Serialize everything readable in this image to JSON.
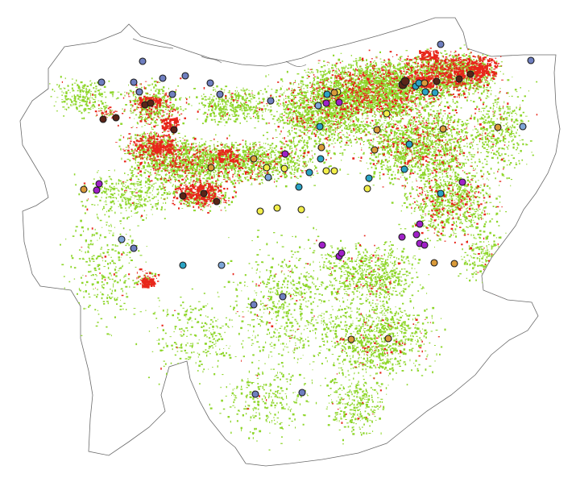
{
  "map": {
    "colors": {
      "background": "#ffffff",
      "boundary_stroke": "#6a6a6a",
      "boundary_fill": "#ffffff",
      "vegetation": "#8ed62a",
      "built_up": "#e8261b",
      "marker_stroke": "#1a1a1a"
    },
    "marker_classes": [
      {
        "id": "slate-blue",
        "color": "#6f7fc0"
      },
      {
        "id": "light-blue",
        "color": "#7ea6d8"
      },
      {
        "id": "teal",
        "color": "#2aa3c4"
      },
      {
        "id": "yellow",
        "color": "#f2ee4a"
      },
      {
        "id": "orange",
        "color": "#d99a3a"
      },
      {
        "id": "purple",
        "color": "#a020c8"
      },
      {
        "id": "dark-brown",
        "color": "#5a2418"
      }
    ]
  }
}
